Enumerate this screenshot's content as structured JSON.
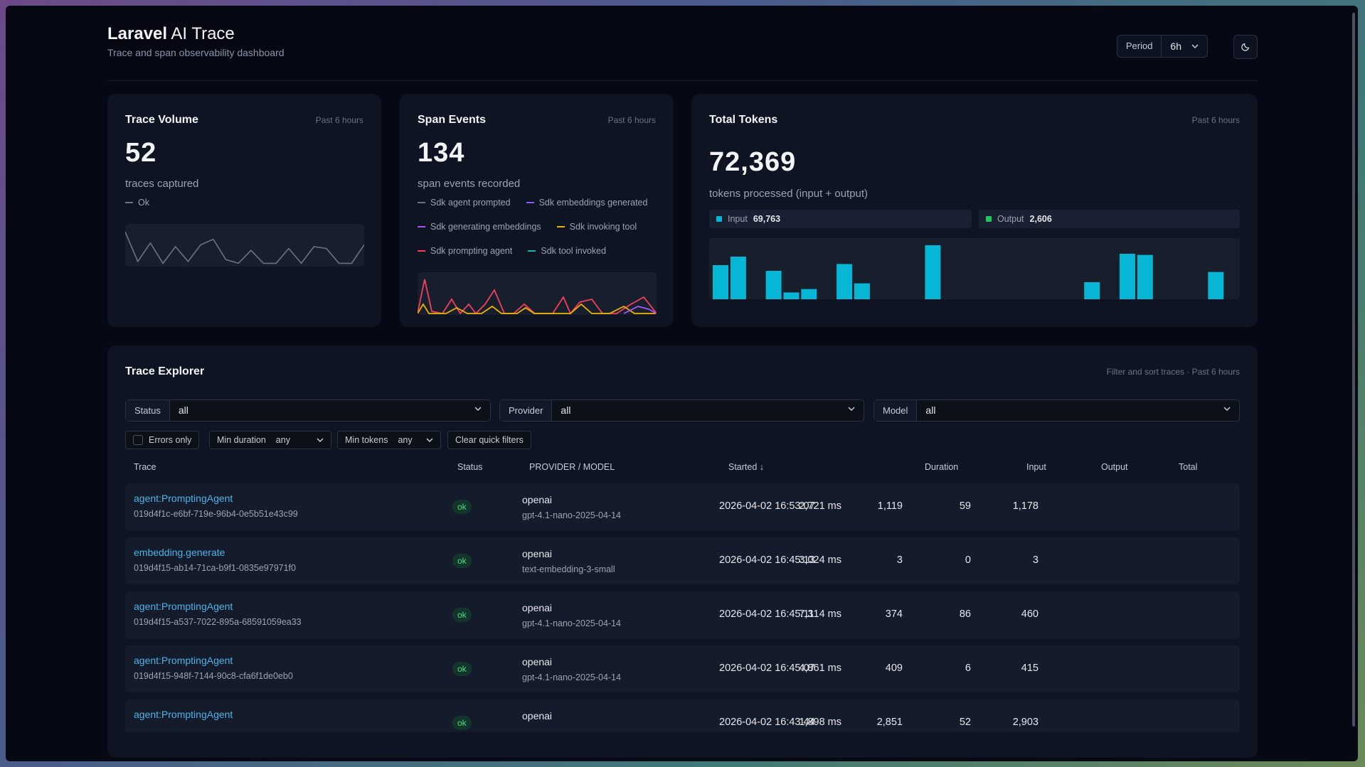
{
  "header": {
    "title_bold": "Laravel",
    "title_rest": " AI Trace",
    "subtitle": "Trace and span observability dashboard",
    "period_label": "Period",
    "period_value": "6h",
    "theme_icon": "moon-icon"
  },
  "cards": {
    "trace_volume": {
      "title": "Trace Volume",
      "meta": "Past 6 hours",
      "value": "52",
      "sub": "traces captured",
      "legend": [
        {
          "label": "Ok",
          "color": "#6b7280"
        }
      ],
      "spark_levels": [
        0.9,
        0.1,
        0.6,
        0.05,
        0.5,
        0.1,
        0.55,
        0.7,
        0.15,
        0.05,
        0.4,
        0.05,
        0.05,
        0.45,
        0.05,
        0.5,
        0.45,
        0.05,
        0.05,
        0.55
      ]
    },
    "span_events": {
      "title": "Span Events",
      "meta": "Past 6 hours",
      "value": "134",
      "sub": "span events recorded",
      "legend": [
        {
          "label": "Sdk agent prompted",
          "color": "#6b7280"
        },
        {
          "label": "Sdk embeddings generated",
          "color": "#8b5cf6"
        },
        {
          "label": "Sdk generating embeddings",
          "color": "#a855f7"
        },
        {
          "label": "Sdk invoking tool",
          "color": "#eab308"
        },
        {
          "label": "Sdk prompting agent",
          "color": "#f43f5e"
        },
        {
          "label": "Sdk tool invoked",
          "color": "#14b8a6"
        }
      ]
    },
    "total_tokens": {
      "title": "Total Tokens",
      "meta": "Past 6 hours",
      "value": "72,369",
      "sub": "tokens processed (input + output)",
      "input_label": "Input",
      "input_value": "69,763",
      "output_label": "Output",
      "output_value": "2,606",
      "input_color": "#06b6d4",
      "output_color": "#22c55e",
      "bar_levels": [
        0.6,
        0.75,
        0,
        0.5,
        0.12,
        0.18,
        0,
        0.62,
        0.28,
        0,
        0,
        0,
        0.95,
        0,
        0,
        0,
        0,
        0,
        0,
        0,
        0,
        0.3,
        0,
        0.8,
        0.78,
        0,
        0,
        0,
        0.48,
        0
      ]
    }
  },
  "explorer": {
    "title": "Trace Explorer",
    "meta": "Filter and sort traces · Past 6 hours",
    "filters": {
      "status_label": "Status",
      "status_value": "all",
      "provider_label": "Provider",
      "provider_value": "all",
      "model_label": "Model",
      "model_value": "all"
    },
    "quick": {
      "errors_only": "Errors only",
      "min_duration_label": "Min duration",
      "min_duration_value": "any",
      "min_tokens_label": "Min tokens",
      "min_tokens_value": "any",
      "clear": "Clear quick filters"
    },
    "columns": {
      "trace": "Trace",
      "status": "Status",
      "provider_model": "PROVIDER / MODEL",
      "started": "Started ↓",
      "duration": "Duration",
      "input": "Input",
      "output": "Output",
      "total": "Total"
    },
    "rows": [
      {
        "name": "agent:PromptingAgent",
        "id": "019d4f1c-e6bf-719e-96b4-0e5b51e43c99",
        "status": "ok",
        "provider": "openai",
        "model": "gpt-4.1-nano-2025-04-14",
        "started": "2026-04-02 16:53:07",
        "duration": "2,721 ms",
        "input": "1,119",
        "output": "59",
        "total": "1,178"
      },
      {
        "name": "embedding.generate",
        "id": "019d4f15-ab14-71ca-b9f1-0835e97971f0",
        "status": "ok",
        "provider": "openai",
        "model": "text-embedding-3-small",
        "started": "2026-04-02 16:45:13",
        "duration": "3,024 ms",
        "input": "3",
        "output": "0",
        "total": "3"
      },
      {
        "name": "agent:PromptingAgent",
        "id": "019d4f15-a537-7022-895a-68591059ea33",
        "status": "ok",
        "provider": "openai",
        "model": "gpt-4.1-nano-2025-04-14",
        "started": "2026-04-02 16:45:11",
        "duration": "7,314 ms",
        "input": "374",
        "output": "86",
        "total": "460"
      },
      {
        "name": "agent:PromptingAgent",
        "id": "019d4f15-948f-7144-90c8-cfa6f1de0eb0",
        "status": "ok",
        "provider": "openai",
        "model": "gpt-4.1-nano-2025-04-14",
        "started": "2026-04-02 16:45:07",
        "duration": "4,861 ms",
        "input": "409",
        "output": "6",
        "total": "415"
      },
      {
        "name": "agent:PromptingAgent",
        "id": "",
        "status": "ok",
        "provider": "openai",
        "model": "",
        "started": "2026-04-02 16:43:44",
        "duration": "1,898 ms",
        "input": "2,851",
        "output": "52",
        "total": "2,903"
      }
    ]
  }
}
